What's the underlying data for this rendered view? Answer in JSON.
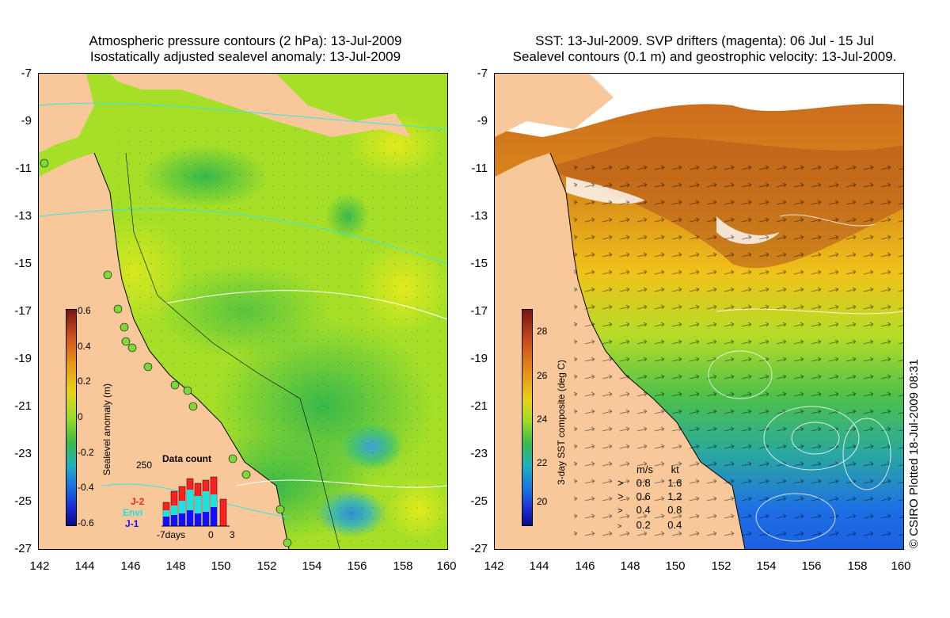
{
  "left_panel": {
    "title_line1": "Atmospheric pressure contours (2 hPa): 13-Jul-2009",
    "title_line2": "Isostatically adjusted sealevel anomaly: 13-Jul-2009",
    "colorbar": {
      "label": "Sealevel anomaly (m)",
      "ticks": [
        "0.6",
        "0.4",
        "0.2",
        "0",
        "-0.2",
        "-0.4",
        "-0.6"
      ]
    },
    "data_count": {
      "title": "Data count",
      "y_max_label": "250",
      "x_labels": [
        "-7days",
        "0",
        "3"
      ],
      "satellites": [
        {
          "name": "J-2",
          "color": "#ff2020"
        },
        {
          "name": "Envi",
          "color": "#20e0e0"
        },
        {
          "name": "J-1",
          "color": "#1010ff"
        }
      ]
    }
  },
  "right_panel": {
    "title_line1": "SST: 13-Jul-2009. SVP drifters (magenta): 06 Jul - 15 Jul",
    "title_line2": "Sealevel contours (0.1 m) and geostrophic velocity: 13-Jul-2009.",
    "colorbar": {
      "label": "3-day SST composite (deg C)",
      "ticks": [
        "28",
        "26",
        "24",
        "22",
        "20"
      ]
    },
    "velocity_legend": {
      "header_ms": "m/s",
      "header_kt": "kt",
      "rows": [
        {
          "ms": "0.8",
          "kt": "1.6"
        },
        {
          "ms": "0.6",
          "kt": "1.2"
        },
        {
          "ms": "0.4",
          "kt": "0.8"
        },
        {
          "ms": "0.2",
          "kt": "0.4"
        }
      ]
    }
  },
  "axes": {
    "y_ticks": [
      "-7",
      "-9",
      "-11",
      "-13",
      "-15",
      "-17",
      "-19",
      "-21",
      "-23",
      "-25",
      "-27"
    ],
    "x_ticks": [
      "142",
      "144",
      "146",
      "148",
      "150",
      "152",
      "154",
      "156",
      "158",
      "160"
    ]
  },
  "credit": "© CSIRO Plotted 18-Jul-2009 08:31",
  "colors": {
    "land": "#f9c89a",
    "sla_mid": "#9adf2c",
    "sst_warm": "#c8641e",
    "sst_cool": "#1e6ee6"
  }
}
